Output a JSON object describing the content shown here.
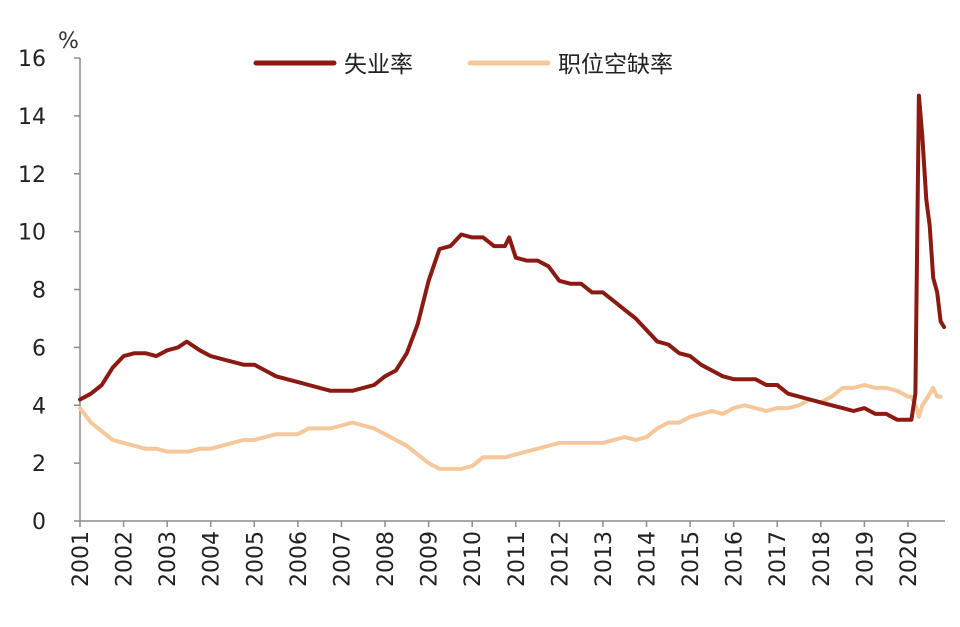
{
  "chart_data": {
    "type": "line",
    "unit": "%",
    "ylim": [
      0,
      16
    ],
    "yticks": [
      "0",
      "2",
      "4",
      "6",
      "8",
      "10",
      "12",
      "14",
      "16"
    ],
    "xticks": [
      "2001",
      "2002",
      "2003",
      "2004",
      "2005",
      "2006",
      "2007",
      "2008",
      "2009",
      "2010",
      "2011",
      "2012",
      "2013",
      "2014",
      "2015",
      "2016",
      "2017",
      "2018",
      "2019",
      "2020"
    ],
    "xlim": [
      2001.0,
      2020.85
    ],
    "grid": false,
    "legend_position": "top-center",
    "series": [
      {
        "name": "失业率",
        "color": "#8B1A12",
        "points": [
          [
            2001.0,
            4.2
          ],
          [
            2001.25,
            4.4
          ],
          [
            2001.5,
            4.7
          ],
          [
            2001.75,
            5.3
          ],
          [
            2002.0,
            5.7
          ],
          [
            2002.25,
            5.8
          ],
          [
            2002.5,
            5.8
          ],
          [
            2002.75,
            5.7
          ],
          [
            2003.0,
            5.9
          ],
          [
            2003.25,
            6.0
          ],
          [
            2003.45,
            6.2
          ],
          [
            2003.75,
            5.9
          ],
          [
            2004.0,
            5.7
          ],
          [
            2004.25,
            5.6
          ],
          [
            2004.5,
            5.5
          ],
          [
            2004.75,
            5.4
          ],
          [
            2005.0,
            5.4
          ],
          [
            2005.25,
            5.2
          ],
          [
            2005.5,
            5.0
          ],
          [
            2005.75,
            4.9
          ],
          [
            2006.0,
            4.8
          ],
          [
            2006.25,
            4.7
          ],
          [
            2006.5,
            4.6
          ],
          [
            2006.75,
            4.5
          ],
          [
            2007.0,
            4.5
          ],
          [
            2007.25,
            4.5
          ],
          [
            2007.5,
            4.6
          ],
          [
            2007.75,
            4.7
          ],
          [
            2008.0,
            5.0
          ],
          [
            2008.25,
            5.2
          ],
          [
            2008.5,
            5.8
          ],
          [
            2008.75,
            6.8
          ],
          [
            2009.0,
            8.3
          ],
          [
            2009.25,
            9.4
          ],
          [
            2009.5,
            9.5
          ],
          [
            2009.75,
            9.9
          ],
          [
            2010.0,
            9.8
          ],
          [
            2010.25,
            9.8
          ],
          [
            2010.5,
            9.5
          ],
          [
            2010.75,
            9.5
          ],
          [
            2010.85,
            9.8
          ],
          [
            2011.0,
            9.1
          ],
          [
            2011.25,
            9.0
          ],
          [
            2011.5,
            9.0
          ],
          [
            2011.75,
            8.8
          ],
          [
            2012.0,
            8.3
          ],
          [
            2012.25,
            8.2
          ],
          [
            2012.5,
            8.2
          ],
          [
            2012.75,
            7.9
          ],
          [
            2013.0,
            7.9
          ],
          [
            2013.25,
            7.6
          ],
          [
            2013.5,
            7.3
          ],
          [
            2013.75,
            7.0
          ],
          [
            2014.0,
            6.6
          ],
          [
            2014.25,
            6.2
          ],
          [
            2014.5,
            6.1
          ],
          [
            2014.75,
            5.8
          ],
          [
            2015.0,
            5.7
          ],
          [
            2015.25,
            5.4
          ],
          [
            2015.5,
            5.2
          ],
          [
            2015.75,
            5.0
          ],
          [
            2016.0,
            4.9
          ],
          [
            2016.25,
            4.9
          ],
          [
            2016.5,
            4.9
          ],
          [
            2016.75,
            4.7
          ],
          [
            2017.0,
            4.7
          ],
          [
            2017.25,
            4.4
          ],
          [
            2017.5,
            4.3
          ],
          [
            2017.75,
            4.2
          ],
          [
            2018.0,
            4.1
          ],
          [
            2018.25,
            4.0
          ],
          [
            2018.5,
            3.9
          ],
          [
            2018.75,
            3.8
          ],
          [
            2019.0,
            3.9
          ],
          [
            2019.25,
            3.7
          ],
          [
            2019.5,
            3.7
          ],
          [
            2019.75,
            3.5
          ],
          [
            2020.0,
            3.5
          ],
          [
            2020.08,
            3.5
          ],
          [
            2020.17,
            4.4
          ],
          [
            2020.25,
            14.7
          ],
          [
            2020.33,
            13.3
          ],
          [
            2020.42,
            11.1
          ],
          [
            2020.5,
            10.2
          ],
          [
            2020.58,
            8.4
          ],
          [
            2020.67,
            7.9
          ],
          [
            2020.75,
            6.9
          ],
          [
            2020.83,
            6.7
          ]
        ]
      },
      {
        "name": "职位空缺率",
        "color": "#F6C79A",
        "points": [
          [
            2001.0,
            3.9
          ],
          [
            2001.25,
            3.4
          ],
          [
            2001.5,
            3.1
          ],
          [
            2001.75,
            2.8
          ],
          [
            2002.0,
            2.7
          ],
          [
            2002.25,
            2.6
          ],
          [
            2002.5,
            2.5
          ],
          [
            2002.75,
            2.5
          ],
          [
            2003.0,
            2.4
          ],
          [
            2003.25,
            2.4
          ],
          [
            2003.5,
            2.4
          ],
          [
            2003.75,
            2.5
          ],
          [
            2004.0,
            2.5
          ],
          [
            2004.25,
            2.6
          ],
          [
            2004.5,
            2.7
          ],
          [
            2004.75,
            2.8
          ],
          [
            2005.0,
            2.8
          ],
          [
            2005.25,
            2.9
          ],
          [
            2005.5,
            3.0
          ],
          [
            2005.75,
            3.0
          ],
          [
            2006.0,
            3.0
          ],
          [
            2006.25,
            3.2
          ],
          [
            2006.5,
            3.2
          ],
          [
            2006.75,
            3.2
          ],
          [
            2007.0,
            3.3
          ],
          [
            2007.25,
            3.4
          ],
          [
            2007.5,
            3.3
          ],
          [
            2007.75,
            3.2
          ],
          [
            2008.0,
            3.0
          ],
          [
            2008.25,
            2.8
          ],
          [
            2008.5,
            2.6
          ],
          [
            2008.75,
            2.3
          ],
          [
            2009.0,
            2.0
          ],
          [
            2009.25,
            1.8
          ],
          [
            2009.5,
            1.8
          ],
          [
            2009.75,
            1.8
          ],
          [
            2010.0,
            1.9
          ],
          [
            2010.25,
            2.2
          ],
          [
            2010.5,
            2.2
          ],
          [
            2010.75,
            2.2
          ],
          [
            2011.0,
            2.3
          ],
          [
            2011.25,
            2.4
          ],
          [
            2011.5,
            2.5
          ],
          [
            2011.75,
            2.6
          ],
          [
            2012.0,
            2.7
          ],
          [
            2012.25,
            2.7
          ],
          [
            2012.5,
            2.7
          ],
          [
            2012.75,
            2.7
          ],
          [
            2013.0,
            2.7
          ],
          [
            2013.25,
            2.8
          ],
          [
            2013.5,
            2.9
          ],
          [
            2013.75,
            2.8
          ],
          [
            2014.0,
            2.9
          ],
          [
            2014.25,
            3.2
          ],
          [
            2014.5,
            3.4
          ],
          [
            2014.75,
            3.4
          ],
          [
            2015.0,
            3.6
          ],
          [
            2015.25,
            3.7
          ],
          [
            2015.5,
            3.8
          ],
          [
            2015.75,
            3.7
          ],
          [
            2016.0,
            3.9
          ],
          [
            2016.25,
            4.0
          ],
          [
            2016.5,
            3.9
          ],
          [
            2016.75,
            3.8
          ],
          [
            2017.0,
            3.9
          ],
          [
            2017.25,
            3.9
          ],
          [
            2017.5,
            4.0
          ],
          [
            2017.75,
            4.2
          ],
          [
            2018.0,
            4.1
          ],
          [
            2018.25,
            4.3
          ],
          [
            2018.5,
            4.6
          ],
          [
            2018.75,
            4.6
          ],
          [
            2019.0,
            4.7
          ],
          [
            2019.25,
            4.6
          ],
          [
            2019.5,
            4.6
          ],
          [
            2019.75,
            4.5
          ],
          [
            2020.0,
            4.3
          ],
          [
            2020.08,
            4.3
          ],
          [
            2020.17,
            4.0
          ],
          [
            2020.25,
            3.6
          ],
          [
            2020.33,
            4.0
          ],
          [
            2020.42,
            4.2
          ],
          [
            2020.5,
            4.4
          ],
          [
            2020.58,
            4.6
          ],
          [
            2020.67,
            4.3
          ],
          [
            2020.75,
            4.3
          ]
        ]
      }
    ]
  }
}
